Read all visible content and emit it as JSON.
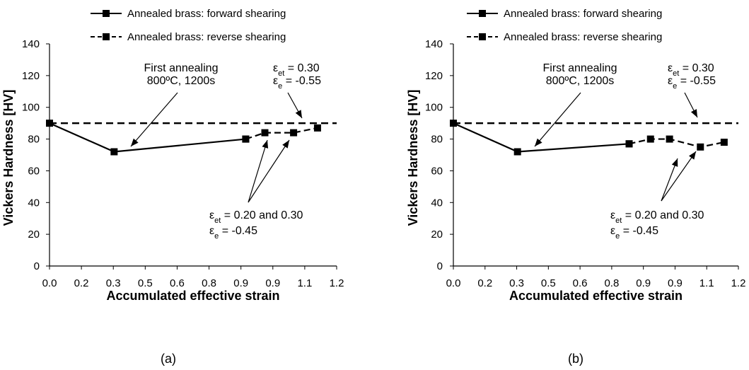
{
  "chart_data": [
    {
      "type": "line",
      "panel_label": "(a)",
      "xlabel": "Accumulated effective strain",
      "ylabel": "Vickers Hardness  [HV]",
      "xlim": [
        0.0,
        1.2
      ],
      "ylim": [
        0,
        140
      ],
      "x_ticks": [
        "0.0",
        "0.2",
        "0.3",
        "0.5",
        "0.6",
        "0.8",
        "0.9",
        "0.9",
        "1.1",
        "1.2"
      ],
      "y_ticks": [
        "0",
        "20",
        "40",
        "60",
        "80",
        "100",
        "120",
        "140"
      ],
      "grid": false,
      "legend_placement": "top",
      "series": [
        {
          "name": "Annealed brass: forward shearing",
          "style": "solid",
          "x": [
            0.0,
            0.27,
            0.82
          ],
          "y": [
            90,
            72,
            80
          ]
        },
        {
          "name": "Annealed brass: reverse shearing",
          "style": "dashed",
          "x": [
            0.82,
            0.9,
            1.02,
            1.12
          ],
          "y": [
            80,
            84,
            84,
            87
          ]
        }
      ],
      "reference_line": {
        "y": 90,
        "style": "dashed"
      },
      "annotations": [
        {
          "lines": [
            "First annealing",
            "800ºC, 1200s"
          ]
        },
        {
          "lines": [
            {
              "sym": "ε",
              "sub": "et",
              "rest": " = 0.30"
            },
            {
              "sym": "ε",
              "sub": "e",
              "rest": " = -0.55"
            }
          ]
        },
        {
          "lines": [
            {
              "sym": "ε",
              "sub": "et",
              "rest": " = 0.20 and 0.30"
            },
            {
              "sym": "ε",
              "sub": "e",
              "rest": " = -0.45"
            }
          ]
        }
      ]
    },
    {
      "type": "line",
      "panel_label": "(b)",
      "xlabel": "Accumulated effective strain",
      "ylabel": "Vickers Hardness  [HV]",
      "xlim": [
        0.0,
        1.2
      ],
      "ylim": [
        0,
        140
      ],
      "x_ticks": [
        "0.0",
        "0.2",
        "0.3",
        "0.5",
        "0.6",
        "0.8",
        "0.9",
        "0.9",
        "1.1",
        "1.2"
      ],
      "y_ticks": [
        "0",
        "20",
        "40",
        "60",
        "80",
        "100",
        "120",
        "140"
      ],
      "grid": false,
      "legend_placement": "top",
      "series": [
        {
          "name": "Annealed brass: forward shearing",
          "style": "solid",
          "x": [
            0.0,
            0.27,
            0.74
          ],
          "y": [
            90,
            72,
            77
          ]
        },
        {
          "name": "Annealed brass: reverse shearing",
          "style": "dashed",
          "x": [
            0.74,
            0.83,
            0.91,
            1.04,
            1.14
          ],
          "y": [
            77,
            80,
            80,
            75,
            78
          ]
        }
      ],
      "reference_line": {
        "y": 90,
        "style": "dashed"
      },
      "annotations": [
        {
          "lines": [
            "First annealing",
            "800ºC, 1200s"
          ]
        },
        {
          "lines": [
            {
              "sym": "ε",
              "sub": "et",
              "rest": " = 0.30"
            },
            {
              "sym": "ε",
              "sub": "e",
              "rest": " = -0.55"
            }
          ]
        },
        {
          "lines": [
            {
              "sym": "ε",
              "sub": "et",
              "rest": " = 0.20 and 0.30"
            },
            {
              "sym": "ε",
              "sub": "e",
              "rest": " = -0.45"
            }
          ]
        }
      ]
    }
  ]
}
